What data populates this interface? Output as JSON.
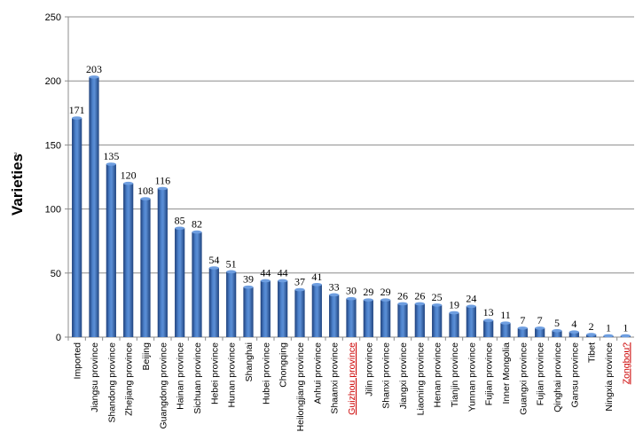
{
  "chart_data": {
    "type": "bar",
    "title": "",
    "xlabel": "",
    "ylabel": "Varieties",
    "ylabel_mark": "↵",
    "ylim": [
      0,
      250
    ],
    "yticks": [
      0,
      50,
      100,
      150,
      200,
      250
    ],
    "grid": "horizontal",
    "legend": "none",
    "bar_color": "#3f6fb8",
    "categories": [
      "Imported",
      "Jiangsu province",
      "Shandong province",
      "Zhejiang province",
      "Beijing",
      "Guangdong province",
      "Hainan province",
      "Sichuan province",
      "Hebei province",
      "Hunan province",
      "Shanghai",
      "Hubei province",
      "Chongqing",
      "Heilongjiang  province",
      "Anhui province",
      "Shaanxi province",
      "Guizhou province",
      "Jilin province",
      "Shanxi province",
      "Jiangxi province",
      "Liaoning province",
      "Henan province",
      "Tianjin province",
      "Yunnan province",
      "Fujian province",
      "Inner Mongolia",
      "Guangxi province",
      "Fujian province",
      "Qinghai province",
      "Gansu province",
      "Tibet",
      "Ningxia province",
      "Zongbou?"
    ],
    "values": [
      171,
      203,
      135,
      120,
      108,
      116,
      85,
      82,
      54,
      51,
      39,
      44,
      44,
      37,
      41,
      33,
      30,
      29,
      29,
      26,
      26,
      25,
      19,
      24,
      13,
      11,
      7,
      7,
      5,
      4,
      2,
      1,
      1
    ],
    "value_labels": [
      "171",
      "203",
      "135",
      "120",
      "108",
      "116",
      "85",
      "82",
      "54",
      "51",
      "39",
      "44",
      "44",
      "37",
      "41",
      "33",
      "30",
      "29",
      "29",
      "26",
      "26",
      "25",
      "19",
      "24",
      "13",
      "11",
      "7",
      "7",
      "5",
      "4",
      "2",
      "1",
      "1"
    ],
    "red_underlined_categories": [
      "Guizhou province",
      "Zongbou?"
    ]
  }
}
